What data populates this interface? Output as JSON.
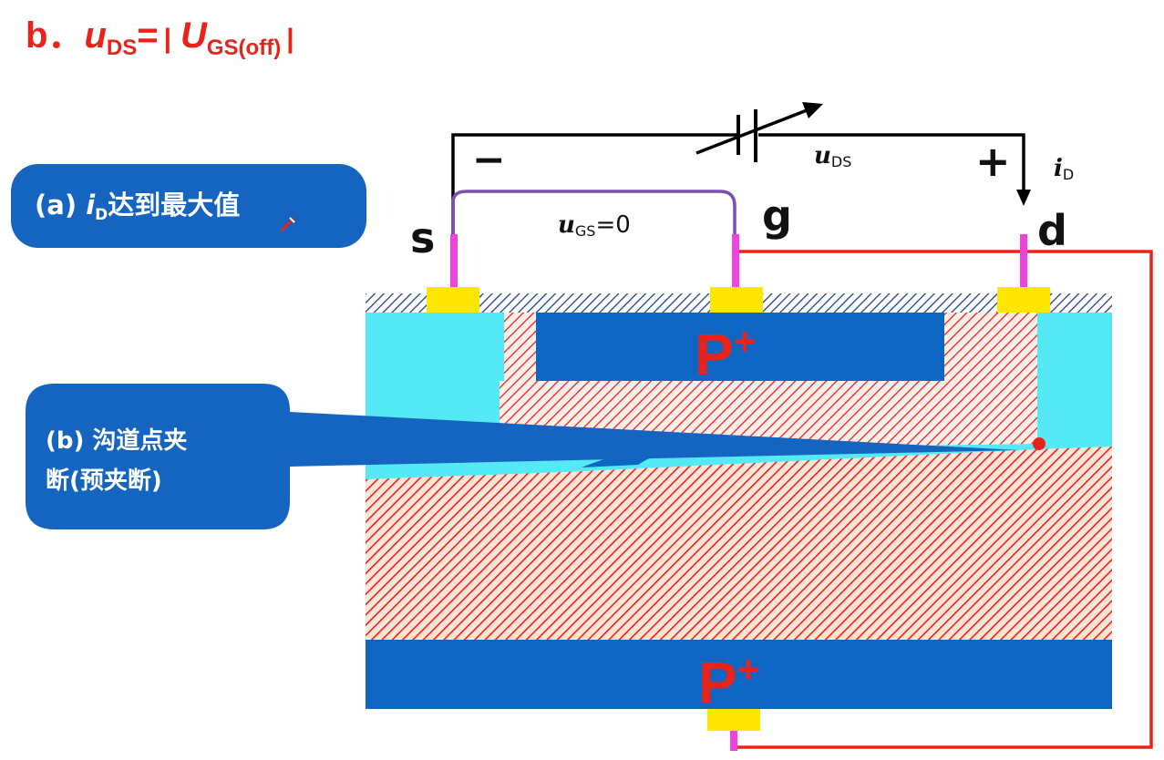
{
  "title": {
    "prefix": "b．",
    "u": "u",
    "u_sub": "DS",
    "eq": "=",
    "U": "U",
    "U_sub": "GS(off)"
  },
  "callout_a": {
    "prefix": "(a)",
    "i": "i",
    "i_sub": "D",
    "text": "达到最大值"
  },
  "callout_b": {
    "line1": "(b) 沟道点夹",
    "line2": "断(预夹断)"
  },
  "terminals": {
    "source": "s",
    "gate": "g",
    "drain": "d"
  },
  "polarity": {
    "minus": "−",
    "plus": "+"
  },
  "labels": {
    "uds": {
      "var": "u",
      "sub": "DS"
    },
    "ugs": {
      "var": "u",
      "sub": "GS",
      "value": "=0"
    },
    "id": {
      "var": "i",
      "sub": "D"
    }
  },
  "regions": {
    "top_gate": "P",
    "bottom_gate": "P",
    "superscript": "+"
  },
  "colors": {
    "red": "#e8231b",
    "blue": "#0d66c2",
    "cyan": "#55e9f5",
    "callout_blue": "#1565c0",
    "terminal_yellow": "#ffe600",
    "lead_magenta": "#ee44dd",
    "wire_purple": "#7a4db4"
  }
}
